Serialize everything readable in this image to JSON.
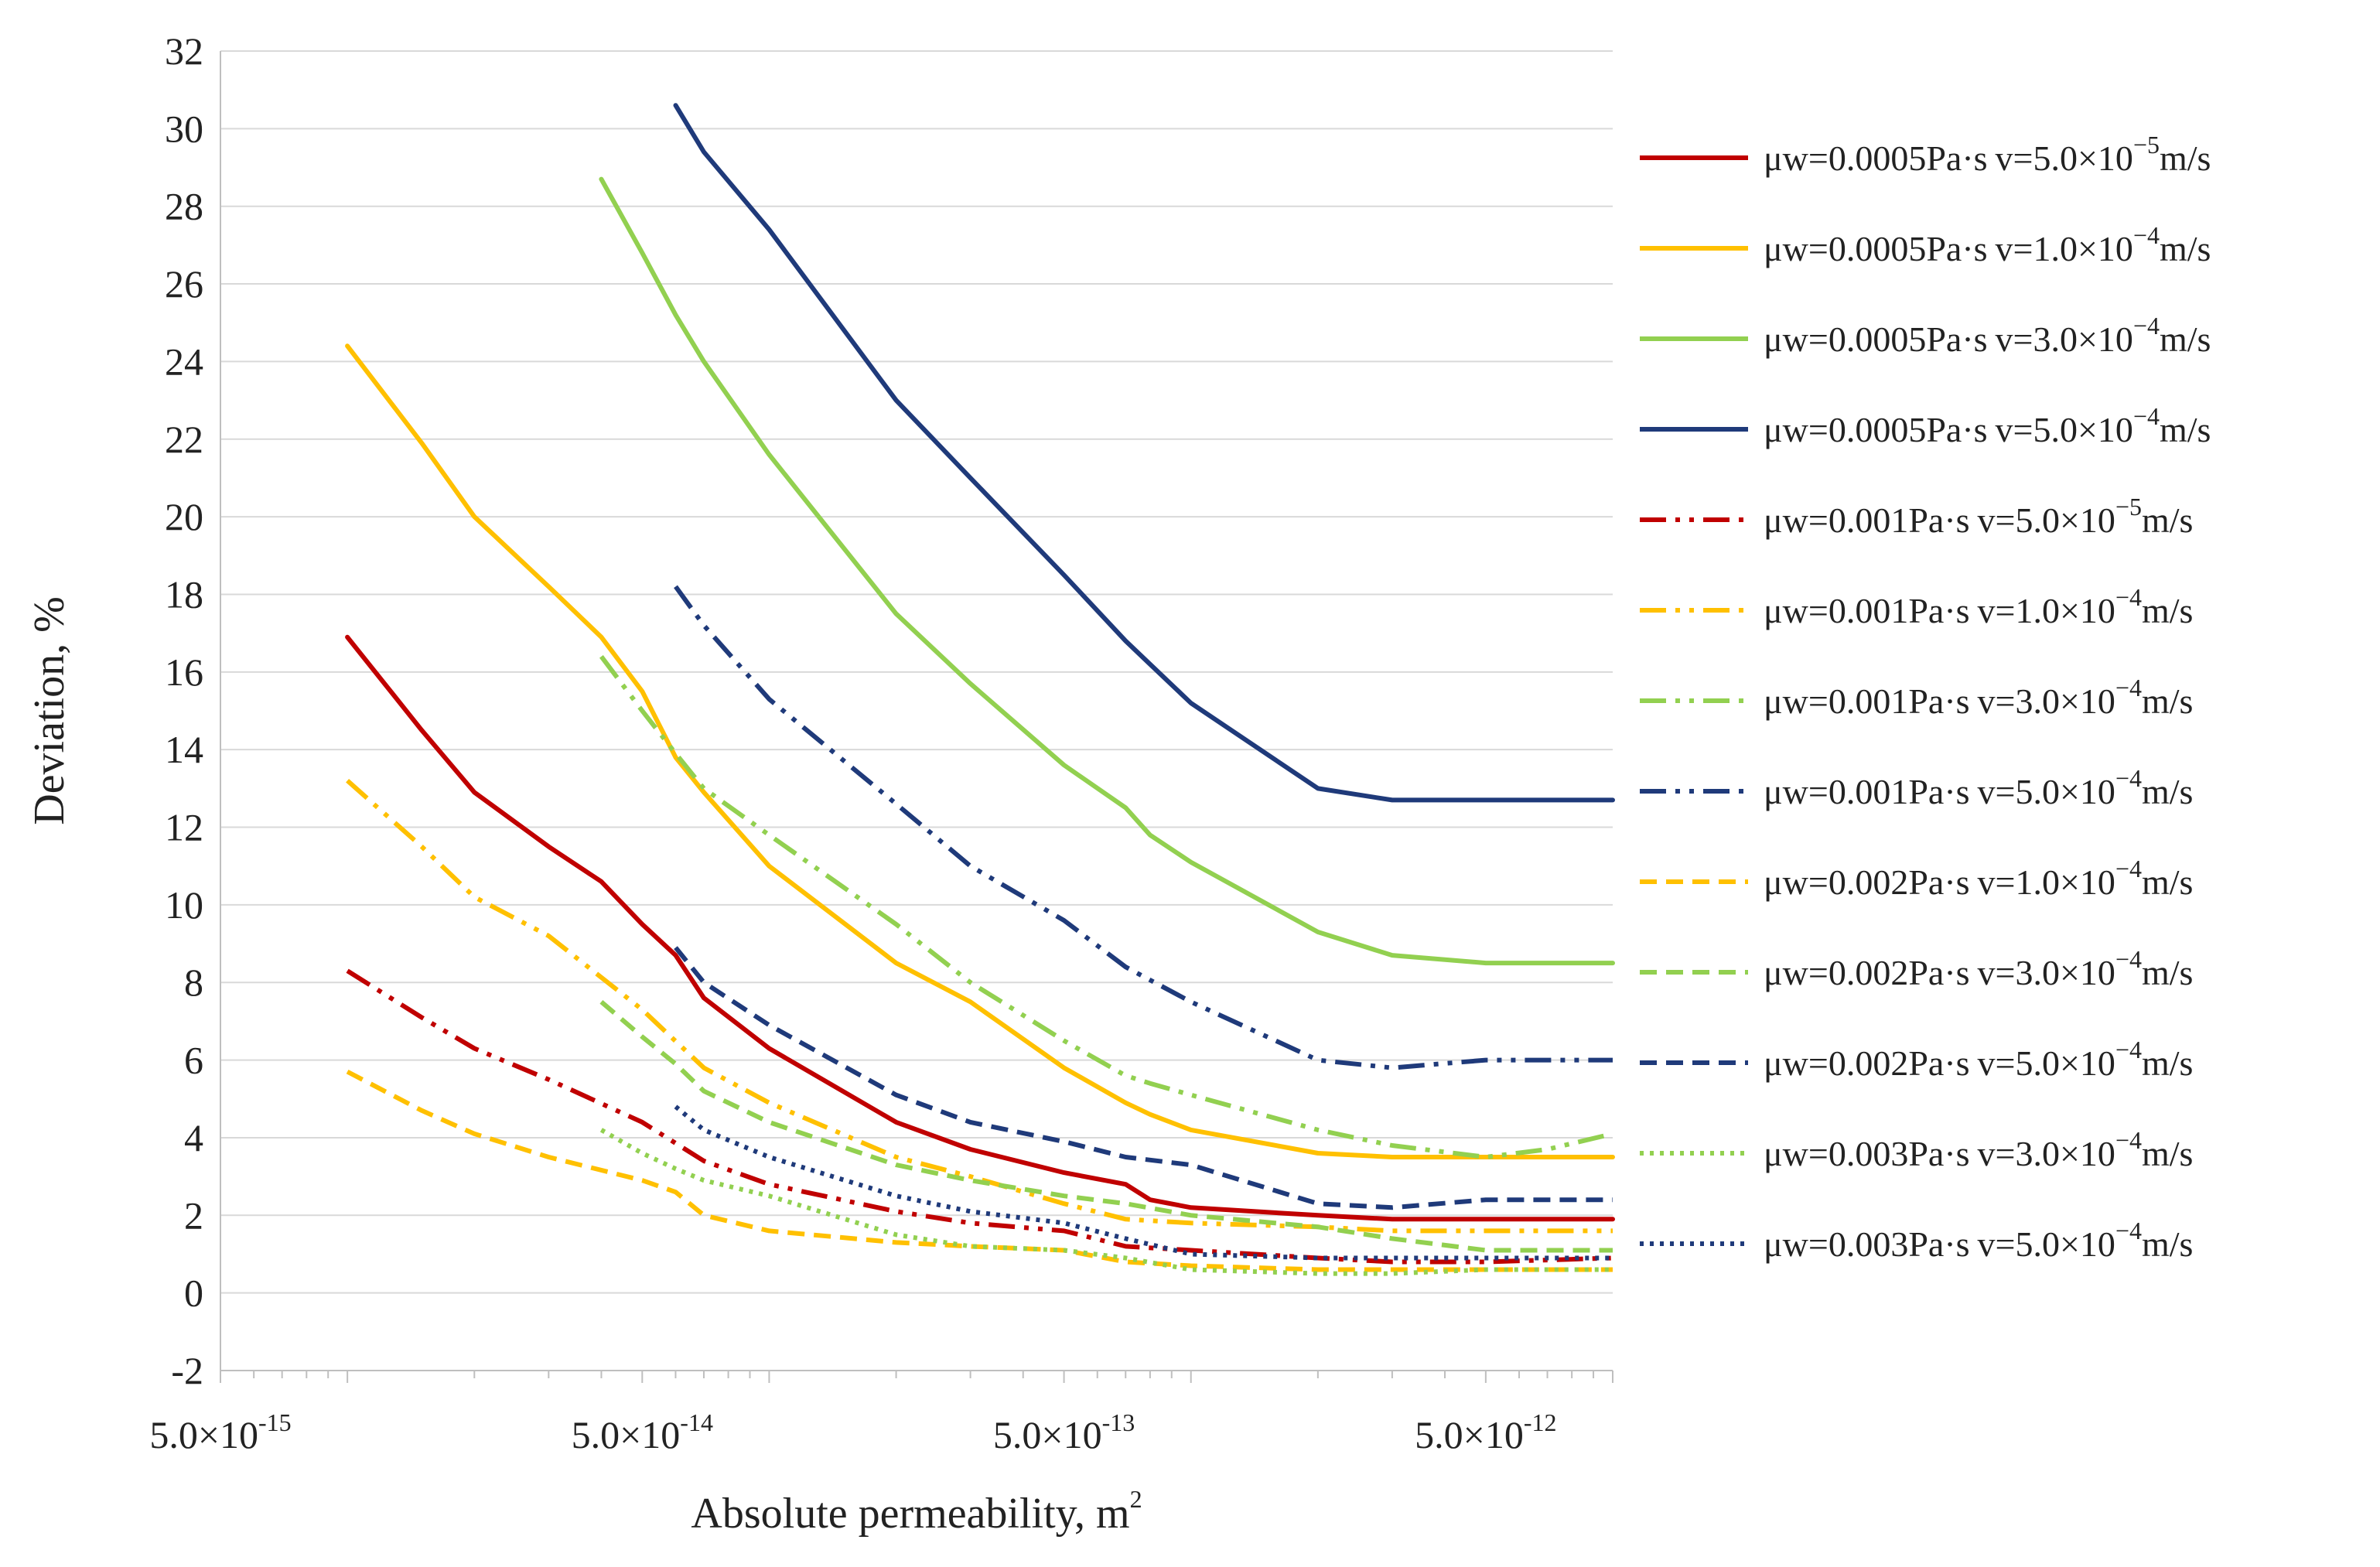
{
  "chart_data": {
    "type": "line",
    "title": "",
    "xlabel": "Absolute permeability, m",
    "xlabel_superscript": "2",
    "ylabel": "Deviation, %",
    "x_scale": "log",
    "xlim": [
      5e-15,
      1e-11
    ],
    "ylim": [
      -2,
      32
    ],
    "y_ticks": [
      -2,
      0,
      2,
      4,
      6,
      8,
      10,
      12,
      14,
      16,
      18,
      20,
      22,
      24,
      26,
      28,
      30,
      32
    ],
    "x_tick_labels": [
      {
        "value": 5e-15,
        "mantissa": "5.0",
        "times": "×",
        "base": "10",
        "exponent": "-15"
      },
      {
        "value": 5e-14,
        "mantissa": "5.0",
        "times": "×",
        "base": "10",
        "exponent": "-14"
      },
      {
        "value": 5e-13,
        "mantissa": "5.0",
        "times": "×",
        "base": "10",
        "exponent": "-13"
      },
      {
        "value": 5e-12,
        "mantissa": "5.0",
        "times": "×",
        "base": "10",
        "exponent": "-12"
      }
    ],
    "grid": true,
    "legend_position": "right",
    "series": [
      {
        "name": "μw=0.0005Pa·s v=5.0×10−5m/s",
        "viscosity": "μw=0.0005Pa·s",
        "velocity_prefix": "v=5.0×10",
        "velocity_exponent": "−5",
        "velocity_unit": "m/s",
        "color": "#c00000",
        "dash": "solid",
        "x": [
          1e-14,
          1.5e-14,
          2e-14,
          3e-14,
          4e-14,
          5e-14,
          6e-14,
          7e-14,
          1e-13,
          2e-13,
          3e-13,
          5e-13,
          7e-13,
          8e-13,
          1e-12,
          2e-12,
          3e-12,
          5e-12,
          1e-11
        ],
        "y": [
          16.9,
          14.5,
          12.9,
          11.5,
          10.6,
          9.5,
          8.7,
          7.6,
          6.3,
          4.4,
          3.7,
          3.1,
          2.8,
          2.4,
          2.2,
          2.0,
          1.9,
          1.9,
          1.9
        ]
      },
      {
        "name": "μw=0.0005Pa·s v=1.0×10−4m/s",
        "viscosity": "μw=0.0005Pa·s",
        "velocity_prefix": "v=1.0×10",
        "velocity_exponent": "−4",
        "velocity_unit": "m/s",
        "color": "#ffc000",
        "dash": "solid",
        "x": [
          1e-14,
          1.5e-14,
          2e-14,
          3e-14,
          4e-14,
          5e-14,
          6e-14,
          7e-14,
          1e-13,
          2e-13,
          3e-13,
          5e-13,
          7e-13,
          8e-13,
          1e-12,
          2e-12,
          3e-12,
          5e-12,
          1e-11
        ],
        "y": [
          24.4,
          21.9,
          20.0,
          18.2,
          16.9,
          15.5,
          13.8,
          12.9,
          11.0,
          8.5,
          7.5,
          5.8,
          4.9,
          4.6,
          4.2,
          3.6,
          3.5,
          3.5,
          3.5
        ]
      },
      {
        "name": "μw=0.0005Pa·s v=3.0×10−4m/s",
        "viscosity": "μw=0.0005Pa·s",
        "velocity_prefix": "v=3.0×10",
        "velocity_exponent": "−4",
        "velocity_unit": "m/s",
        "color": "#92d050",
        "dash": "solid",
        "x": [
          4e-14,
          5e-14,
          6e-14,
          7e-14,
          1e-13,
          2e-13,
          3e-13,
          5e-13,
          7e-13,
          8e-13,
          1e-12,
          2e-12,
          3e-12,
          5e-12,
          1e-11
        ],
        "y": [
          28.7,
          26.8,
          25.2,
          24.0,
          21.6,
          17.5,
          15.7,
          13.6,
          12.5,
          11.8,
          11.1,
          9.3,
          8.7,
          8.5,
          8.5
        ]
      },
      {
        "name": "μw=0.0005Pa·s v=5.0×10−4m/s",
        "viscosity": "μw=0.0005Pa·s",
        "velocity_prefix": "v=5.0×10",
        "velocity_exponent": "−4",
        "velocity_unit": "m/s",
        "color": "#1f3a7a",
        "dash": "solid",
        "x": [
          6e-14,
          7e-14,
          1e-13,
          2e-13,
          3e-13,
          5e-13,
          7e-13,
          8e-13,
          1e-12,
          2e-12,
          3e-12,
          5e-12,
          1e-11
        ],
        "y": [
          30.6,
          29.4,
          27.4,
          23.0,
          21.0,
          18.5,
          16.8,
          16.2,
          15.2,
          13.0,
          12.7,
          12.7,
          12.7
        ]
      },
      {
        "name": "μw=0.001Pa·s v=5.0×10−5m/s",
        "viscosity": "μw=0.001Pa·s",
        "velocity_prefix": "v=5.0×10",
        "velocity_exponent": "−5",
        "velocity_unit": "m/s",
        "color": "#c00000",
        "dash": "dashdotdot",
        "x": [
          1e-14,
          1.5e-14,
          2e-14,
          3e-14,
          5e-14,
          7e-14,
          1e-13,
          2e-13,
          3e-13,
          5e-13,
          7e-13,
          1e-12,
          2e-12,
          3e-12,
          5e-12,
          1e-11
        ],
        "y": [
          8.3,
          7.1,
          6.3,
          5.5,
          4.4,
          3.4,
          2.8,
          2.1,
          1.8,
          1.6,
          1.2,
          1.1,
          0.9,
          0.8,
          0.8,
          0.9
        ]
      },
      {
        "name": "μw=0.001Pa·s v=1.0×10−4m/s",
        "viscosity": "μw=0.001Pa·s",
        "velocity_prefix": "v=1.0×10",
        "velocity_exponent": "−4",
        "velocity_unit": "m/s",
        "color": "#ffc000",
        "dash": "dashdotdot",
        "x": [
          1e-14,
          1.5e-14,
          2e-14,
          3e-14,
          5e-14,
          7e-14,
          1e-13,
          2e-13,
          3e-13,
          5e-13,
          7e-13,
          1e-12,
          2e-12,
          3e-12,
          5e-12,
          1e-11
        ],
        "y": [
          13.2,
          11.5,
          10.2,
          9.2,
          7.3,
          5.8,
          4.9,
          3.5,
          3.0,
          2.3,
          1.9,
          1.8,
          1.7,
          1.6,
          1.6,
          1.6
        ]
      },
      {
        "name": "μw=0.001Pa·s v=3.0×10−4m/s",
        "viscosity": "μw=0.001Pa·s",
        "velocity_prefix": "v=3.0×10",
        "velocity_exponent": "−4",
        "velocity_unit": "m/s",
        "color": "#92d050",
        "dash": "dashdotdot",
        "x": [
          4e-14,
          5e-14,
          6e-14,
          7e-14,
          1e-13,
          2e-13,
          3e-13,
          5e-13,
          7e-13,
          8e-13,
          1e-12,
          2e-12,
          3e-12,
          5e-12,
          7e-12,
          1e-11
        ],
        "y": [
          16.4,
          15.0,
          13.9,
          13.0,
          11.8,
          9.5,
          8.0,
          6.5,
          5.6,
          5.4,
          5.1,
          4.2,
          3.8,
          3.5,
          3.7,
          4.1
        ]
      },
      {
        "name": "μw=0.001Pa·s v=5.0×10−4m/s",
        "viscosity": "μw=0.001Pa·s",
        "velocity_prefix": "v=5.0×10",
        "velocity_exponent": "−4",
        "velocity_unit": "m/s",
        "color": "#1f3a7a",
        "dash": "dashdotdot",
        "x": [
          6e-14,
          7e-14,
          1e-13,
          2e-13,
          3e-13,
          5e-13,
          7e-13,
          1e-12,
          2e-12,
          3e-12,
          5e-12,
          1e-11
        ],
        "y": [
          18.2,
          17.2,
          15.3,
          12.6,
          11.0,
          9.6,
          8.4,
          7.5,
          6.0,
          5.8,
          6.0,
          6.0
        ]
      },
      {
        "name": "μw=0.002Pa·s v=1.0×10−4m/s",
        "viscosity": "μw=0.002Pa·s",
        "velocity_prefix": "v=1.0×10",
        "velocity_exponent": "−4",
        "velocity_unit": "m/s",
        "color": "#ffc000",
        "dash": "dash",
        "x": [
          1e-14,
          1.5e-14,
          2e-14,
          3e-14,
          5e-14,
          6e-14,
          7e-14,
          1e-13,
          2e-13,
          3e-13,
          5e-13,
          7e-13,
          1e-12,
          2e-12,
          3e-12,
          5e-12,
          1e-11
        ],
        "y": [
          5.7,
          4.7,
          4.1,
          3.5,
          2.9,
          2.6,
          2.0,
          1.6,
          1.3,
          1.2,
          1.1,
          0.8,
          0.7,
          0.6,
          0.6,
          0.6,
          0.6
        ]
      },
      {
        "name": "μw=0.002Pa·s v=3.0×10−4m/s",
        "viscosity": "μw=0.002Pa·s",
        "velocity_prefix": "v=3.0×10",
        "velocity_exponent": "−4",
        "velocity_unit": "m/s",
        "color": "#92d050",
        "dash": "dash",
        "x": [
          4e-14,
          5e-14,
          6e-14,
          7e-14,
          1e-13,
          2e-13,
          3e-13,
          5e-13,
          7e-13,
          1e-12,
          2e-12,
          3e-12,
          5e-12,
          1e-11
        ],
        "y": [
          7.5,
          6.6,
          5.9,
          5.2,
          4.4,
          3.3,
          2.9,
          2.5,
          2.3,
          2.0,
          1.7,
          1.4,
          1.1,
          1.1
        ]
      },
      {
        "name": "μw=0.002Pa·s v=5.0×10−4m/s",
        "viscosity": "μw=0.002Pa·s",
        "velocity_prefix": "v=5.0×10",
        "velocity_exponent": "−4",
        "velocity_unit": "m/s",
        "color": "#1f3a7a",
        "dash": "dash",
        "x": [
          6e-14,
          7e-14,
          1e-13,
          2e-13,
          3e-13,
          5e-13,
          7e-13,
          1e-12,
          2e-12,
          3e-12,
          5e-12,
          1e-11
        ],
        "y": [
          8.9,
          8.0,
          6.9,
          5.1,
          4.4,
          3.9,
          3.5,
          3.3,
          2.3,
          2.2,
          2.4,
          2.4
        ]
      },
      {
        "name": "μw=0.003Pa·s v=3.0×10−4m/s",
        "viscosity": "μw=0.003Pa·s",
        "velocity_prefix": "v=3.0×10",
        "velocity_exponent": "−4",
        "velocity_unit": "m/s",
        "color": "#92d050",
        "dash": "dot",
        "x": [
          4e-14,
          5e-14,
          6e-14,
          7e-14,
          1e-13,
          2e-13,
          3e-13,
          5e-13,
          7e-13,
          1e-12,
          2e-12,
          3e-12,
          5e-12,
          1e-11
        ],
        "y": [
          4.2,
          3.6,
          3.2,
          2.9,
          2.5,
          1.5,
          1.2,
          1.1,
          0.9,
          0.6,
          0.5,
          0.5,
          0.6,
          0.6
        ]
      },
      {
        "name": "μw=0.003Pa·s v=5.0×10−4m/s",
        "viscosity": "μw=0.003Pa·s",
        "velocity_prefix": "v=5.0×10",
        "velocity_exponent": "−4",
        "velocity_unit": "m/s",
        "color": "#1f3a7a",
        "dash": "dot",
        "x": [
          6e-14,
          7e-14,
          1e-13,
          2e-13,
          3e-13,
          5e-13,
          7e-13,
          1e-12,
          2e-12,
          3e-12,
          5e-12,
          1e-11
        ],
        "y": [
          4.8,
          4.2,
          3.5,
          2.5,
          2.1,
          1.8,
          1.4,
          1.0,
          0.9,
          0.9,
          0.9,
          0.9
        ]
      }
    ]
  }
}
